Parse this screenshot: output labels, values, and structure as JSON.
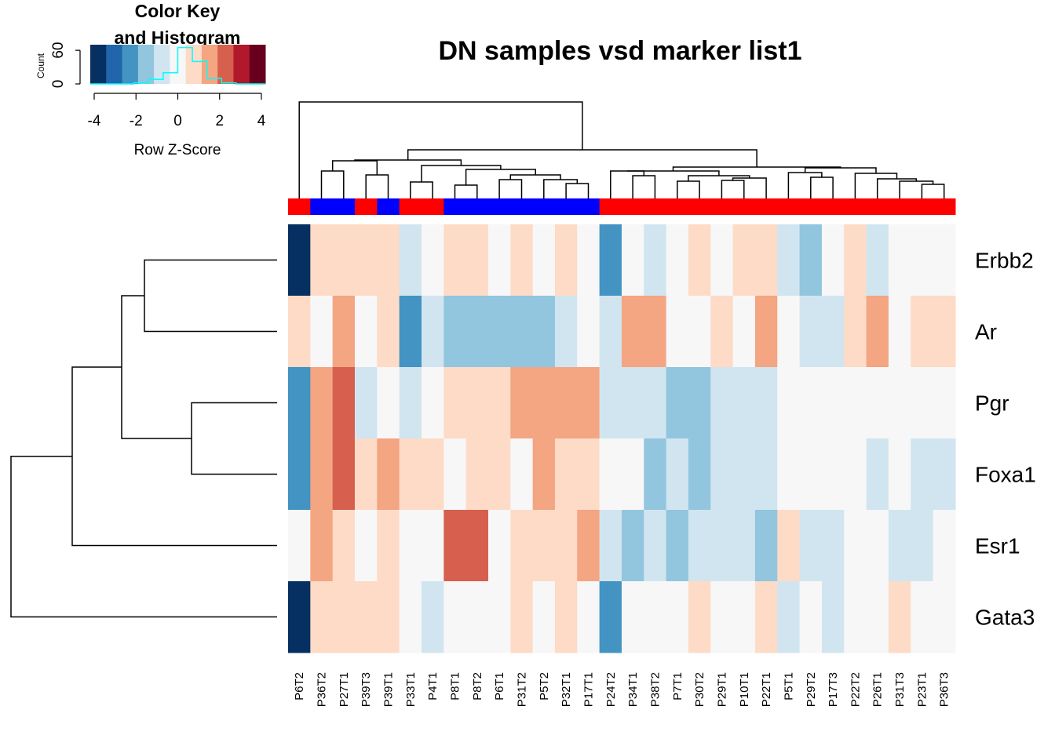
{
  "chart_data": {
    "type": "heatmap",
    "title": "DN samples vsd marker list1",
    "rows": [
      "Erbb2",
      "Ar",
      "Pgr",
      "Foxa1",
      "Esr1",
      "Gata3"
    ],
    "columns": [
      "P6T2",
      "P36T2",
      "P27T1",
      "P39T3",
      "P39T1",
      "P33T1",
      "P4T1",
      "P8T1",
      "P8T2",
      "P6T1",
      "P31T2",
      "P5T2",
      "P32T1",
      "P17T1",
      "P24T2",
      "P34T1",
      "P38T2",
      "P7T1",
      "P30T2",
      "P29T1",
      "P10T1",
      "P22T1",
      "P5T1",
      "P29T2",
      "P17T3",
      "P22T2",
      "P26T1",
      "P31T3",
      "P23T1",
      "P36T3"
    ],
    "column_groups": [
      "red",
      "blue",
      "blue",
      "red",
      "blue",
      "red",
      "red",
      "blue",
      "blue",
      "blue",
      "blue",
      "blue",
      "blue",
      "blue",
      "red",
      "red",
      "red",
      "red",
      "red",
      "red",
      "red",
      "red",
      "red",
      "red",
      "red",
      "red",
      "red",
      "red",
      "red",
      "red"
    ],
    "group_colors": {
      "red": "#ff0000",
      "blue": "#0000ff"
    },
    "values": [
      [
        -4,
        1,
        1,
        1,
        1,
        -1,
        0,
        1,
        1,
        0,
        1,
        0,
        1,
        0,
        -3,
        0,
        -1,
        0,
        1,
        0,
        1,
        1,
        -1,
        -2,
        0,
        1,
        -1,
        0,
        0,
        0
      ],
      [
        1,
        0,
        2,
        0,
        1,
        -3,
        -1,
        -2,
        -2,
        -2,
        -2,
        -2,
        -1,
        0,
        -1,
        2,
        2,
        0,
        0,
        1,
        0,
        2,
        0,
        -1,
        -1,
        1,
        2,
        0,
        1,
        1
      ],
      [
        -3,
        2,
        3,
        -1,
        0,
        -1,
        0,
        1,
        1,
        1,
        2,
        2,
        2,
        2,
        -1,
        -1,
        -1,
        -2,
        -2,
        -1,
        -1,
        -1,
        0,
        0,
        0,
        0,
        0,
        0,
        0,
        0
      ],
      [
        -3,
        2,
        3,
        1,
        2,
        1,
        1,
        0,
        1,
        1,
        0,
        2,
        1,
        1,
        0,
        0,
        -2,
        -1,
        -2,
        -1,
        -1,
        -1,
        0,
        0,
        0,
        0,
        -1,
        0,
        -1,
        -1
      ],
      [
        0,
        2,
        1,
        0,
        1,
        0,
        0,
        3,
        3,
        0,
        1,
        1,
        1,
        2,
        -1,
        -2,
        -1,
        -2,
        -1,
        -1,
        -1,
        -2,
        1,
        -1,
        -1,
        0,
        0,
        -1,
        -1,
        0
      ],
      [
        -4,
        1,
        1,
        1,
        1,
        0,
        -1,
        0,
        0,
        0,
        1,
        0,
        1,
        0,
        -3,
        0,
        0,
        0,
        1,
        0,
        0,
        1,
        -1,
        0,
        -1,
        0,
        0,
        1,
        0,
        0
      ]
    ],
    "color_key": {
      "title_line1": "Color Key",
      "title_line2": "and Histogram",
      "xlabel": "Row Z-Score",
      "ylabel": "Count",
      "x_ticks": [
        "-4",
        "-2",
        "0",
        "2",
        "4"
      ],
      "y_ticks": [
        "0",
        "60"
      ],
      "colors": [
        "#053061",
        "#2166ac",
        "#4393c3",
        "#92c5de",
        "#d1e5f0",
        "#f7f7f7",
        "#fddbc7",
        "#f4a582",
        "#d6604d",
        "#b2182b",
        "#67001f"
      ],
      "histogram_color": "#00ffff",
      "histogram_counts": [
        0,
        0,
        0,
        2,
        8,
        20,
        65,
        40,
        10,
        2,
        0,
        0
      ]
    },
    "row_dendrogram": true,
    "column_dendrogram": true,
    "cell_colors": {
      "-4": "#053061",
      "-3": "#4393c3",
      "-2": "#92c5de",
      "-1": "#d1e5f0",
      "0": "#f7f7f7",
      "1": "#fddbc7",
      "2": "#f4a582",
      "3": "#d6604d"
    }
  }
}
